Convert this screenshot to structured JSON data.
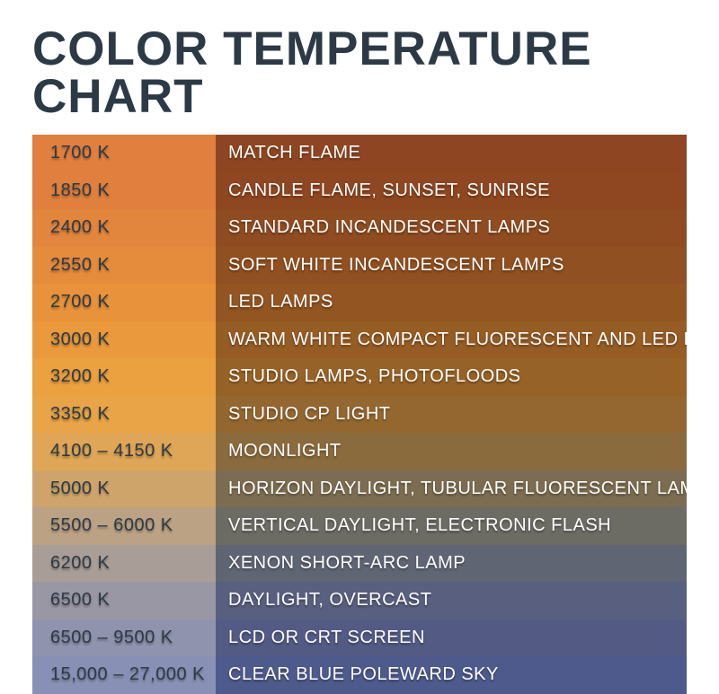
{
  "title": "Color Temperature Chart",
  "title_color": "#2d3a46",
  "title_fontsize": 53,
  "background_color": "#ffffff",
  "table": {
    "row_height": 41.5,
    "temp_col_width": 204,
    "temp_text_color": "#2d3a46",
    "desc_text_color": "#ffffff",
    "cell_fontsize": 20,
    "rows": [
      {
        "temp": "1700 K",
        "desc": "Match flame",
        "temp_bg": "#e17f3f",
        "desc_bg": "#8e4622"
      },
      {
        "temp": "1850 K",
        "desc": "Candle flame, sunset, sunrise",
        "temp_bg": "#e1803e",
        "desc_bg": "#8e4720"
      },
      {
        "temp": "2400 K",
        "desc": "Standard incandescent lamps",
        "temp_bg": "#e2853d",
        "desc_bg": "#8f4c20"
      },
      {
        "temp": "2550 K",
        "desc": "Soft white incandescent lamps",
        "temp_bg": "#e58b3c",
        "desc_bg": "#905021"
      },
      {
        "temp": "2700 K",
        "desc": "LED lamps",
        "temp_bg": "#e8923b",
        "desc_bg": "#935521"
      },
      {
        "temp": "3000 K",
        "desc": "Warm white compact fluorescent and LED lamps",
        "temp_bg": "#ea993c",
        "desc_bg": "#955c24"
      },
      {
        "temp": "3200 K",
        "desc": "Studio lamps, photofloods",
        "temp_bg": "#eba13f",
        "desc_bg": "#966227"
      },
      {
        "temp": "3350 K",
        "desc": "Studio CP light",
        "temp_bg": "#e8a447",
        "desc_bg": "#93672f"
      },
      {
        "temp": "4100 – 4150 K",
        "desc": "Moonlight",
        "temp_bg": "#dea656",
        "desc_bg": "#8a6b3e"
      },
      {
        "temp": "5000 K",
        "desc": "Horizon daylight, tubular fluorescent lamps",
        "temp_bg": "#cea46b",
        "desc_bg": "#7c6c51"
      },
      {
        "temp": "5500 – 6000 K",
        "desc": "Vertical daylight, electronic flash",
        "temp_bg": "#bca284",
        "desc_bg": "#6c6b64"
      },
      {
        "temp": "6200 K",
        "desc": "Xenon short-arc lamp",
        "temp_bg": "#a99d97",
        "desc_bg": "#606574"
      },
      {
        "temp": "6500 K",
        "desc": "Daylight, overcast",
        "temp_bg": "#9a97a4",
        "desc_bg": "#595f7e"
      },
      {
        "temp": "6500 – 9500 K",
        "desc": "LCD or CRT screen",
        "temp_bg": "#8f93ae",
        "desc_bg": "#535b85"
      },
      {
        "temp": "15,000 – 27,000 K",
        "desc": "Clear blue poleward sky",
        "temp_bg": "#8891b5",
        "desc_bg": "#4f5a8c"
      }
    ]
  }
}
